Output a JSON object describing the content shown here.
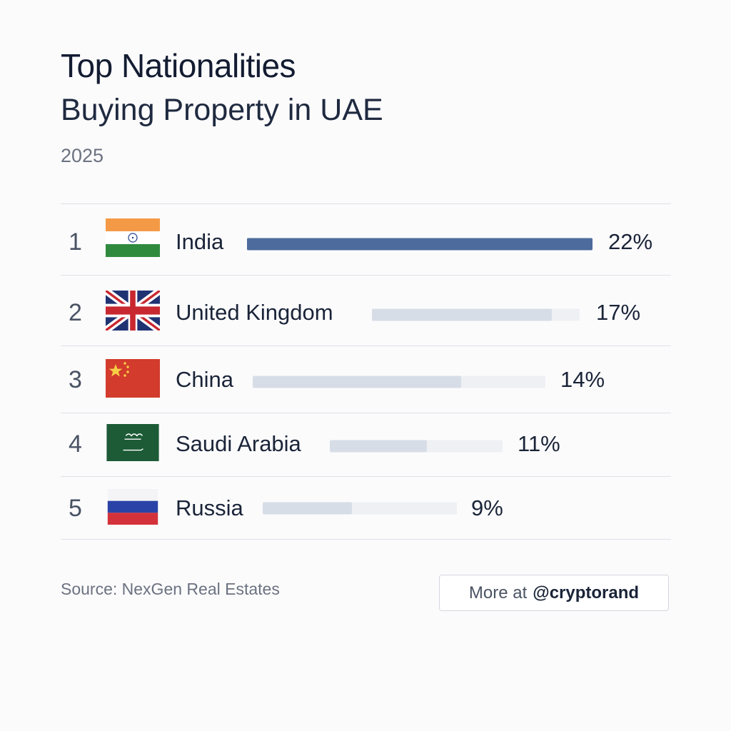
{
  "header": {
    "title": "Top Nationalities",
    "subtitle": "Buying Property in UAE",
    "year": "2025"
  },
  "footer": {
    "source": "Source: NexGen Real Estates",
    "more_prefix": "More at",
    "more_handle": "@cryptorand"
  },
  "colors": {
    "primary_bar": "#4d6c9d",
    "secondary_fill": "#d7dde7",
    "track": "#eef0f4"
  },
  "chart_data": {
    "type": "bar",
    "orientation": "horizontal",
    "title": "Top Nationalities",
    "subtitle": "Buying Property in UAE",
    "categories": [
      "India",
      "United Kingdom",
      "China",
      "Saudi Arabia",
      "Russia"
    ],
    "values": [
      22,
      17,
      14,
      11,
      9
    ],
    "ranks": [
      "1",
      "2",
      "3",
      "4",
      "5"
    ],
    "labels": [
      "22%",
      "17%",
      "14%",
      "11%",
      "9%"
    ],
    "flags": [
      "india-flag-icon",
      "uk-flag-icon",
      "china-flag-icon",
      "saudi-flag-icon",
      "russia-flag-icon"
    ],
    "unit": "%",
    "grid": false
  },
  "rows": [
    {
      "rank": "1",
      "country": "India",
      "pct": "22%"
    },
    {
      "rank": "2",
      "country": "United Kingdom",
      "pct": "17%"
    },
    {
      "rank": "3",
      "country": "China",
      "pct": "14%"
    },
    {
      "rank": "4",
      "country": "Saudi Arabia",
      "pct": "11%"
    },
    {
      "rank": "5",
      "country": "Russia",
      "pct": "9%"
    }
  ]
}
